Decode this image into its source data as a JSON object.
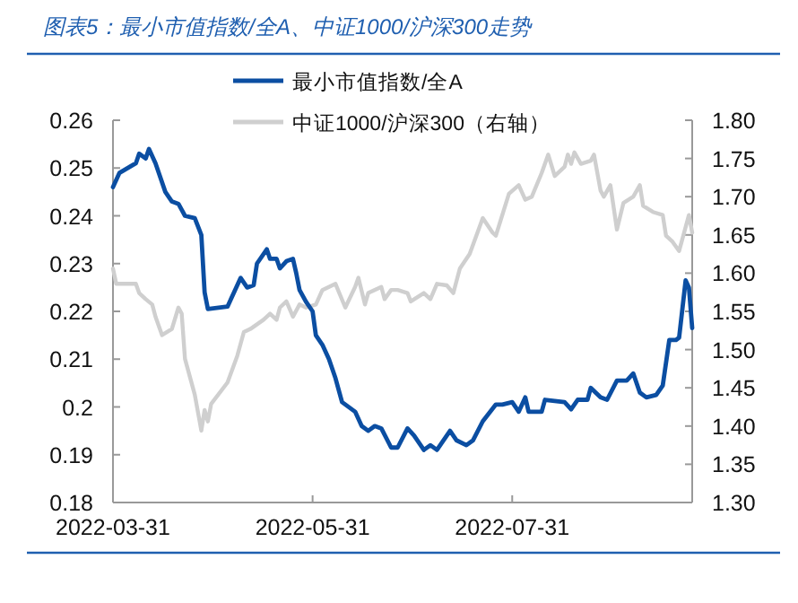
{
  "chart_data": {
    "type": "line",
    "title": "图表5：最小市值指数/全A、中证1000/沪深300走势",
    "legend": "top",
    "xlim": [
      "2022-03-31",
      "2022-09-24"
    ],
    "xticks": [
      "2022-03-31",
      "2022-05-31",
      "2022-07-31"
    ],
    "ylim": [
      0.18,
      0.26
    ],
    "yticks": [
      0.18,
      0.19,
      0.2,
      0.21,
      0.22,
      0.23,
      0.24,
      0.25,
      0.26
    ],
    "y2lim": [
      1.3,
      1.8
    ],
    "y2ticks": [
      {
        "value": 1.3,
        "label": "1.30"
      },
      {
        "value": 1.35,
        "label": "1.35"
      },
      {
        "value": 1.4,
        "label": "1.40"
      },
      {
        "value": 1.45,
        "label": "1.45"
      },
      {
        "value": 1.5,
        "label": "1.50"
      },
      {
        "value": 1.55,
        "label": "1.55"
      },
      {
        "value": 1.6,
        "label": "1.60"
      },
      {
        "value": 1.65,
        "label": "1.65"
      },
      {
        "value": 1.7,
        "label": "1.70"
      },
      {
        "value": 1.75,
        "label": "1.75"
      },
      {
        "value": 1.8,
        "label": "1.80"
      }
    ],
    "series": [
      {
        "name": "最小市值指数/全A",
        "color": "#0b4ea2",
        "axis": "y",
        "x": [
          "2022-03-31",
          "2022-04-02",
          "2022-04-07",
          "2022-04-08",
          "2022-04-10",
          "2022-04-11",
          "2022-04-13",
          "2022-04-16",
          "2022-04-18",
          "2022-04-20",
          "2022-04-22",
          "2022-04-25",
          "2022-04-27",
          "2022-04-28",
          "2022-04-29",
          "2022-05-05",
          "2022-05-07",
          "2022-05-09",
          "2022-05-11",
          "2022-05-13",
          "2022-05-14",
          "2022-05-17",
          "2022-05-18",
          "2022-05-20",
          "2022-05-21",
          "2022-05-23",
          "2022-05-25",
          "2022-05-26",
          "2022-05-27",
          "2022-05-29",
          "2022-05-31",
          "2022-06-01",
          "2022-06-03",
          "2022-06-05",
          "2022-06-07",
          "2022-06-09",
          "2022-06-13",
          "2022-06-15",
          "2022-06-17",
          "2022-06-19",
          "2022-06-21",
          "2022-06-24",
          "2022-06-26",
          "2022-06-29",
          "2022-07-01",
          "2022-07-04",
          "2022-07-06",
          "2022-07-08",
          "2022-07-12",
          "2022-07-14",
          "2022-07-17",
          "2022-07-19",
          "2022-07-22",
          "2022-07-26",
          "2022-07-28",
          "2022-07-31",
          "2022-08-02",
          "2022-08-04",
          "2022-08-05",
          "2022-08-09",
          "2022-08-10",
          "2022-08-16",
          "2022-08-18",
          "2022-08-20",
          "2022-08-23",
          "2022-08-24",
          "2022-08-27",
          "2022-08-29",
          "2022-09-01",
          "2022-09-04",
          "2022-09-06",
          "2022-09-08",
          "2022-09-10",
          "2022-09-13",
          "2022-09-15",
          "2022-09-17",
          "2022-09-19",
          "2022-09-20",
          "2022-09-22",
          "2022-09-23",
          "2022-09-24"
        ],
        "values": [
          0.246,
          0.249,
          0.251,
          0.253,
          0.252,
          0.254,
          0.251,
          0.245,
          0.243,
          0.2425,
          0.24,
          0.2395,
          0.236,
          0.224,
          0.2205,
          0.221,
          0.224,
          0.227,
          0.225,
          0.2255,
          0.23,
          0.233,
          0.231,
          0.231,
          0.229,
          0.2305,
          0.231,
          0.228,
          0.2245,
          0.222,
          0.22,
          0.215,
          0.213,
          0.21,
          0.206,
          0.201,
          0.199,
          0.196,
          0.195,
          0.196,
          0.1955,
          0.1915,
          0.1915,
          0.1955,
          0.194,
          0.191,
          0.192,
          0.191,
          0.195,
          0.193,
          0.192,
          0.193,
          0.197,
          0.2005,
          0.2005,
          0.201,
          0.199,
          0.202,
          0.199,
          0.199,
          0.2015,
          0.201,
          0.1995,
          0.2015,
          0.2015,
          0.204,
          0.202,
          0.2015,
          0.2055,
          0.2055,
          0.207,
          0.203,
          0.202,
          0.2025,
          0.2045,
          0.214,
          0.214,
          0.2145,
          0.2265,
          0.225,
          0.2165
        ]
      },
      {
        "name": "中证1000/沪深300（右轴）",
        "color": "#cfcfcf",
        "axis": "y2",
        "x": [
          "2022-03-31",
          "2022-04-01",
          "2022-04-04",
          "2022-04-07",
          "2022-04-08",
          "2022-04-10",
          "2022-04-12",
          "2022-04-13",
          "2022-04-15",
          "2022-04-18",
          "2022-04-20",
          "2022-04-21",
          "2022-04-22",
          "2022-04-25",
          "2022-04-27",
          "2022-04-28",
          "2022-04-29",
          "2022-04-30",
          "2022-05-05",
          "2022-05-08",
          "2022-05-10",
          "2022-05-12",
          "2022-05-16",
          "2022-05-18",
          "2022-05-20",
          "2022-05-21",
          "2022-05-23",
          "2022-05-25",
          "2022-05-27",
          "2022-05-29",
          "2022-06-01",
          "2022-06-03",
          "2022-06-07",
          "2022-06-10",
          "2022-06-13",
          "2022-06-14",
          "2022-06-16",
          "2022-06-17",
          "2022-06-21",
          "2022-06-22",
          "2022-06-24",
          "2022-06-26",
          "2022-06-29",
          "2022-06-30",
          "2022-07-04",
          "2022-07-06",
          "2022-07-08",
          "2022-07-11",
          "2022-07-13",
          "2022-07-15",
          "2022-07-18",
          "2022-07-22",
          "2022-07-25",
          "2022-07-26",
          "2022-07-30",
          "2022-08-02",
          "2022-08-04",
          "2022-08-06",
          "2022-08-09",
          "2022-08-11",
          "2022-08-13",
          "2022-08-16",
          "2022-08-17",
          "2022-08-18",
          "2022-08-19",
          "2022-08-21",
          "2022-08-24",
          "2022-08-25",
          "2022-08-27",
          "2022-08-28",
          "2022-08-30",
          "2022-09-01",
          "2022-09-03",
          "2022-09-06",
          "2022-09-08",
          "2022-09-09",
          "2022-09-12",
          "2022-09-15",
          "2022-09-16",
          "2022-09-18",
          "2022-09-20",
          "2022-09-23",
          "2022-09-24"
        ],
        "values": [
          1.606,
          1.586,
          1.586,
          1.586,
          1.574,
          1.566,
          1.559,
          1.543,
          1.519,
          1.527,
          1.555,
          1.547,
          1.488,
          1.441,
          1.394,
          1.421,
          1.406,
          1.429,
          1.457,
          1.492,
          1.523,
          1.527,
          1.539,
          1.547,
          1.539,
          1.555,
          1.563,
          1.543,
          1.559,
          1.555,
          1.559,
          1.578,
          1.586,
          1.555,
          1.582,
          1.594,
          1.559,
          1.574,
          1.582,
          1.566,
          1.578,
          1.578,
          1.574,
          1.563,
          1.574,
          1.566,
          1.586,
          1.584,
          1.574,
          1.606,
          1.625,
          1.672,
          1.653,
          1.649,
          1.704,
          1.715,
          1.696,
          1.7,
          1.731,
          1.755,
          1.727,
          1.739,
          1.755,
          1.743,
          1.758,
          1.743,
          1.747,
          1.755,
          1.708,
          1.7,
          1.715,
          1.657,
          1.692,
          1.7,
          1.715,
          1.688,
          1.68,
          1.676,
          1.649,
          1.641,
          1.629,
          1.676,
          1.653
        ]
      }
    ]
  }
}
